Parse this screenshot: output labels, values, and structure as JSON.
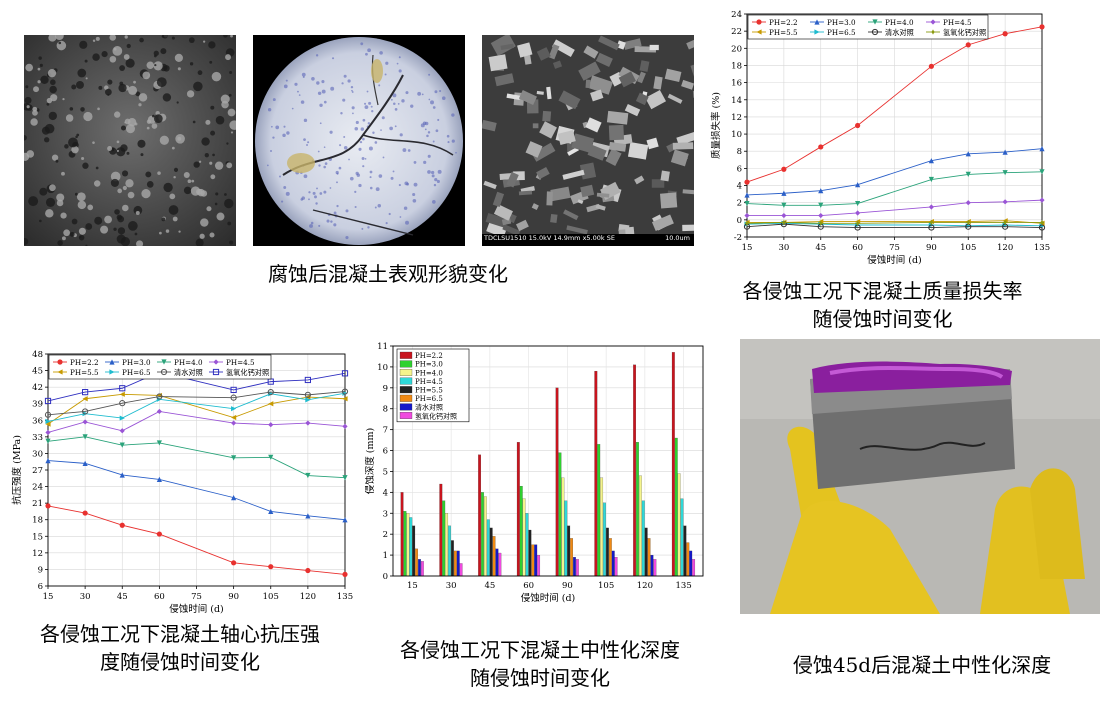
{
  "captions": {
    "surface": "腐蚀后混凝土表观形貌变化",
    "mass_line1": "各侵蚀工况下混凝土质量损失率",
    "mass_line2": "随侵蚀时间变化",
    "strength_line1": "各侵蚀工况下混凝土轴心抗压强",
    "strength_line2": "度随侵蚀时间变化",
    "carb_line1": "各侵蚀工况下混凝土中性化深度",
    "carb_line2": "随侵蚀时间变化",
    "photo45": "侵蚀45d后混凝土中性化深度"
  },
  "sem_label": "TDCLSU1510 15.0kV 14.9mm x5.00k SE",
  "sem_scale": "10.0um",
  "chart_data": [
    {
      "type": "line",
      "id": "mass",
      "xlabel": "侵蚀时间 (d)",
      "ylabel": "质量损失率 (%)",
      "x": [
        15,
        30,
        45,
        60,
        90,
        105,
        120,
        135
      ],
      "xticks": [
        "15",
        "30",
        "45",
        "60",
        "75",
        "90",
        "105",
        "120",
        "135"
      ],
      "ylim": [
        -2,
        24
      ],
      "yticks": [
        -2,
        0,
        2,
        4,
        6,
        8,
        10,
        12,
        14,
        16,
        18,
        20,
        22,
        24
      ],
      "legend": "top-left",
      "series": [
        {
          "name": "PH=2.2",
          "color": "#e8312f",
          "marker": "circle",
          "values": [
            4.4,
            5.9,
            8.5,
            11.0,
            17.9,
            20.4,
            21.7,
            22.5
          ]
        },
        {
          "name": "PH=3.0",
          "color": "#2a5fc8",
          "marker": "triangle",
          "values": [
            2.9,
            3.1,
            3.4,
            4.1,
            6.9,
            7.7,
            7.9,
            8.3
          ]
        },
        {
          "name": "PH=4.0",
          "color": "#2aa37a",
          "marker": "triangle-down",
          "values": [
            1.9,
            1.7,
            1.7,
            1.9,
            4.7,
            5.3,
            5.5,
            5.6
          ]
        },
        {
          "name": "PH=4.5",
          "color": "#9a55d6",
          "marker": "diamond",
          "values": [
            0.5,
            0.5,
            0.5,
            0.8,
            1.5,
            2.0,
            2.1,
            2.3
          ]
        },
        {
          "name": "PH=5.5",
          "color": "#c79a00",
          "marker": "triangle-left",
          "values": [
            -0.3,
            -0.3,
            -0.2,
            -0.2,
            -0.2,
            -0.2,
            -0.1,
            -0.4
          ]
        },
        {
          "name": "PH=6.5",
          "color": "#1fbccf",
          "marker": "triangle-right",
          "values": [
            -0.5,
            -0.4,
            -0.5,
            -0.6,
            -0.6,
            -0.7,
            -0.6,
            -0.7
          ]
        },
        {
          "name": "清水对照",
          "color": "#333333",
          "marker": "hexagon",
          "values": [
            -0.8,
            -0.5,
            -0.8,
            -0.9,
            -0.9,
            -0.8,
            -0.8,
            -0.9
          ]
        },
        {
          "name": "氢氧化钙对照",
          "color": "#8a9a10",
          "marker": "star",
          "values": [
            -0.4,
            -0.3,
            -0.4,
            -0.4,
            -0.3,
            -0.3,
            -0.3,
            -0.3
          ]
        }
      ]
    },
    {
      "type": "line",
      "id": "strength",
      "xlabel": "侵蚀时间 (d)",
      "ylabel": "抗压强度 (MPa)",
      "x": [
        15,
        30,
        45,
        60,
        90,
        105,
        120,
        135
      ],
      "xticks": [
        "15",
        "30",
        "45",
        "60",
        "75",
        "90",
        "105",
        "120",
        "135"
      ],
      "ylim": [
        6,
        48
      ],
      "yticks": [
        6,
        9,
        12,
        15,
        18,
        21,
        24,
        27,
        30,
        33,
        36,
        39,
        42,
        45,
        48
      ],
      "legend": "top",
      "series": [
        {
          "name": "PH=2.2",
          "color": "#e8312f",
          "marker": "circle",
          "values": [
            20.5,
            19.2,
            17.0,
            15.4,
            10.2,
            9.5,
            8.8,
            8.1
          ]
        },
        {
          "name": "PH=3.0",
          "color": "#2a5fc8",
          "marker": "triangle",
          "values": [
            28.7,
            28.2,
            26.1,
            25.3,
            22.0,
            19.5,
            18.7,
            18.0
          ]
        },
        {
          "name": "PH=4.0",
          "color": "#2aa37a",
          "marker": "triangle-down",
          "values": [
            32.2,
            33.0,
            31.5,
            31.9,
            29.2,
            29.3,
            26.0,
            25.6
          ]
        },
        {
          "name": "PH=4.5",
          "color": "#9a55d6",
          "marker": "diamond",
          "values": [
            33.8,
            35.7,
            34.1,
            37.6,
            35.5,
            35.2,
            35.5,
            34.9
          ]
        },
        {
          "name": "PH=5.5",
          "color": "#c79a00",
          "marker": "triangle-left",
          "values": [
            35.3,
            39.9,
            40.7,
            40.5,
            36.5,
            39.0,
            40.2,
            39.9
          ]
        },
        {
          "name": "PH=6.5",
          "color": "#1fbccf",
          "marker": "triangle-right",
          "values": [
            35.8,
            37.2,
            36.4,
            39.8,
            38.1,
            40.8,
            39.7,
            40.9
          ]
        },
        {
          "name": "清水对照",
          "color": "#555555",
          "marker": "hexagon",
          "values": [
            37.0,
            37.6,
            39.1,
            40.3,
            40.1,
            41.1,
            40.6,
            41.2
          ]
        },
        {
          "name": "氢氧化钙对照",
          "color": "#3030c0",
          "marker": "square",
          "values": [
            39.5,
            41.1,
            41.8,
            44.7,
            41.5,
            43.0,
            43.3,
            44.5
          ]
        }
      ]
    },
    {
      "type": "bar",
      "id": "carbonation",
      "xlabel": "侵蚀时间 (d)",
      "ylabel": "侵蚀深度 (mm)",
      "categories": [
        "15",
        "30",
        "45",
        "60",
        "90",
        "105",
        "120",
        "135"
      ],
      "ylim": [
        0,
        11
      ],
      "yticks": [
        0,
        1,
        2,
        3,
        4,
        5,
        6,
        7,
        8,
        9,
        10,
        11
      ],
      "legend": "top-left",
      "series": [
        {
          "name": "PH=2.2",
          "color": "#c8141e",
          "values": [
            4.0,
            4.4,
            5.8,
            6.4,
            9.0,
            9.8,
            10.1,
            10.7
          ]
        },
        {
          "name": "PH=3.0",
          "color": "#2fd12f",
          "values": [
            3.1,
            3.6,
            4.0,
            4.3,
            5.9,
            6.3,
            6.4,
            6.6
          ]
        },
        {
          "name": "PH=4.0",
          "color": "#f4f48c",
          "values": [
            3.0,
            3.0,
            3.8,
            3.7,
            4.7,
            4.7,
            4.8,
            4.9
          ]
        },
        {
          "name": "PH=4.5",
          "color": "#2fd8d8",
          "values": [
            2.8,
            2.4,
            2.7,
            3.0,
            3.6,
            3.5,
            3.6,
            3.7
          ]
        },
        {
          "name": "PH=5.5",
          "color": "#222222",
          "values": [
            2.4,
            1.7,
            2.3,
            2.2,
            2.4,
            2.3,
            2.3,
            2.4
          ]
        },
        {
          "name": "PH=6.5",
          "color": "#f08a14",
          "values": [
            1.3,
            1.2,
            1.9,
            1.5,
            1.8,
            1.8,
            1.8,
            1.6
          ]
        },
        {
          "name": "清水对照",
          "color": "#1418c8",
          "values": [
            0.8,
            1.2,
            1.3,
            1.5,
            0.9,
            1.2,
            1.0,
            1.2
          ]
        },
        {
          "name": "氢氧化钙对照",
          "color": "#f04adf",
          "values": [
            0.7,
            0.6,
            1.1,
            1.0,
            0.8,
            0.9,
            0.8,
            0.8
          ]
        }
      ]
    }
  ]
}
